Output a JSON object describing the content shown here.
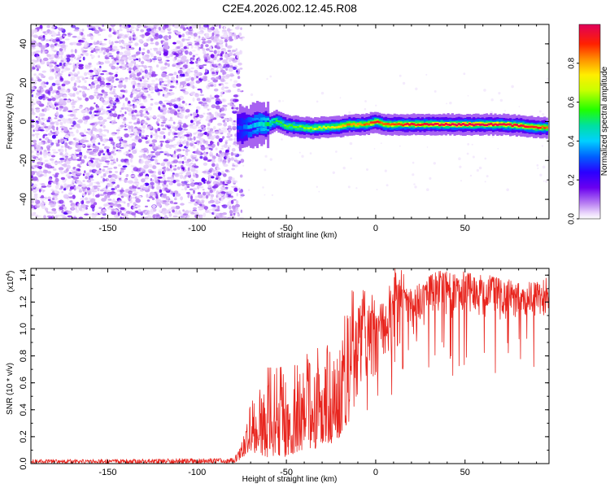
{
  "figure_title": "C2E4.2026.002.12.45.R08",
  "colors": {
    "snr_line": "#e8251e",
    "frame": "#000000",
    "background": "#ffffff"
  },
  "colormap": [
    "#ffffff",
    "#e9d5fb",
    "#c79af5",
    "#9b4cf0",
    "#6a00f0",
    "#3a00ff",
    "#0040ff",
    "#00a0ff",
    "#00e0e0",
    "#00e060",
    "#40ff00",
    "#a0ff00",
    "#ffff00",
    "#ffb000",
    "#ff5000",
    "#ff0030",
    "#e0005a"
  ],
  "chart_data": [
    {
      "type": "heatmap",
      "title": "",
      "xlabel": "Height of straight line (km)",
      "ylabel": "Frequency (Hz)",
      "xlim": [
        -193,
        97
      ],
      "ylim": [
        -50,
        50
      ],
      "x_ticks": [
        -150,
        -100,
        -50,
        0,
        50
      ],
      "x_tick_labels": [
        "-150",
        "-100",
        "-50",
        "0",
        "50"
      ],
      "y_ticks": [
        -40,
        -20,
        0,
        20,
        40
      ],
      "y_tick_labels": [
        "-40",
        "-20",
        "0",
        "20",
        "40"
      ],
      "noise_region_x": [
        -193,
        -77
      ],
      "colorbar": {
        "label": "Normalized spectral amplitude",
        "range": [
          0,
          1
        ],
        "ticks": [
          0,
          0.2,
          0.4,
          0.6,
          0.8
        ],
        "tick_labels": [
          "0.0",
          "0.2",
          "0.4",
          "0.6",
          "0.8"
        ]
      },
      "ridge": {
        "x": [
          -77,
          -70,
          -65,
          -60,
          -55,
          -50,
          -45,
          -40,
          -35,
          -30,
          -25,
          -20,
          -15,
          -10,
          -5,
          0,
          5,
          10,
          20,
          30,
          40,
          50,
          60,
          70,
          80,
          90,
          97
        ],
        "frequency": [
          -3.5,
          -2.5,
          -1.0,
          -1.5,
          0.5,
          -2.0,
          -2.5,
          -3.0,
          -3.5,
          -3.0,
          -3.0,
          -2.5,
          -1.5,
          -1.5,
          -1.5,
          0.0,
          -1.5,
          -1.5,
          -1.5,
          -1.5,
          -1.5,
          -1.5,
          -1.5,
          -1.5,
          -2.0,
          -3.0,
          -3.0
        ],
        "amplitude": [
          0.35,
          0.45,
          0.5,
          0.55,
          0.6,
          0.62,
          0.62,
          0.66,
          0.7,
          0.72,
          0.74,
          0.78,
          0.82,
          0.84,
          0.86,
          0.9,
          0.88,
          0.9,
          0.94,
          0.96,
          0.98,
          1.0,
          1.0,
          0.98,
          0.95,
          0.9,
          0.88
        ]
      }
    },
    {
      "type": "line",
      "title": "",
      "xlabel": "Height of straight line (km)",
      "ylabel": "SNR (10 * v/v)",
      "y_multiplier_label": "(x10",
      "y_multiplier_exponent": "4",
      "y_multiplier_close": ")",
      "xlim": [
        -193,
        97
      ],
      "ylim": [
        0.0,
        1.45
      ],
      "x_ticks": [
        -150,
        -100,
        -50,
        0,
        50
      ],
      "x_tick_labels": [
        "-150",
        "-100",
        "-50",
        "0",
        "50"
      ],
      "y_ticks": [
        0.0,
        0.2,
        0.4,
        0.6,
        0.8,
        1.0,
        1.2,
        1.4
      ],
      "y_tick_labels": [
        "0.0",
        "0.2",
        "0.4",
        "0.6",
        "0.8",
        "1.0",
        "1.2",
        "1.4"
      ],
      "series": [
        {
          "name": "SNR",
          "envelope": {
            "x": [
              -193,
              -80,
              -77,
              -74,
              -70,
              -65,
              -60,
              -55,
              -50,
              -45,
              -40,
              -35,
              -30,
              -25,
              -20,
              -15,
              -10,
              -5,
              0,
              5,
              10,
              15,
              20,
              25,
              30,
              35,
              40,
              45,
              50,
              55,
              60,
              65,
              70,
              75,
              80,
              85,
              90,
              97
            ],
            "low": [
              0.0,
              0.0,
              0.02,
              0.05,
              0.1,
              0.05,
              0.05,
              0.05,
              0.05,
              0.08,
              0.1,
              0.1,
              0.15,
              0.15,
              0.2,
              0.3,
              0.5,
              0.6,
              0.65,
              0.7,
              0.75,
              0.8,
              0.8,
              0.95,
              1.1,
              1.1,
              1.05,
              1.1,
              1.1,
              1.15,
              1.05,
              1.1,
              1.05,
              1.05,
              1.1,
              1.1,
              1.1,
              1.1
            ],
            "high": [
              0.03,
              0.04,
              0.1,
              0.2,
              0.45,
              0.55,
              0.75,
              0.8,
              0.6,
              0.75,
              0.8,
              0.85,
              0.95,
              0.9,
              1.1,
              1.4,
              1.2,
              1.45,
              1.2,
              1.2,
              1.45,
              1.45,
              1.3,
              1.35,
              1.4,
              1.45,
              1.45,
              1.4,
              1.45,
              1.4,
              1.4,
              1.4,
              1.4,
              1.38,
              1.35,
              1.35,
              1.35,
              1.4
            ]
          }
        }
      ]
    }
  ]
}
